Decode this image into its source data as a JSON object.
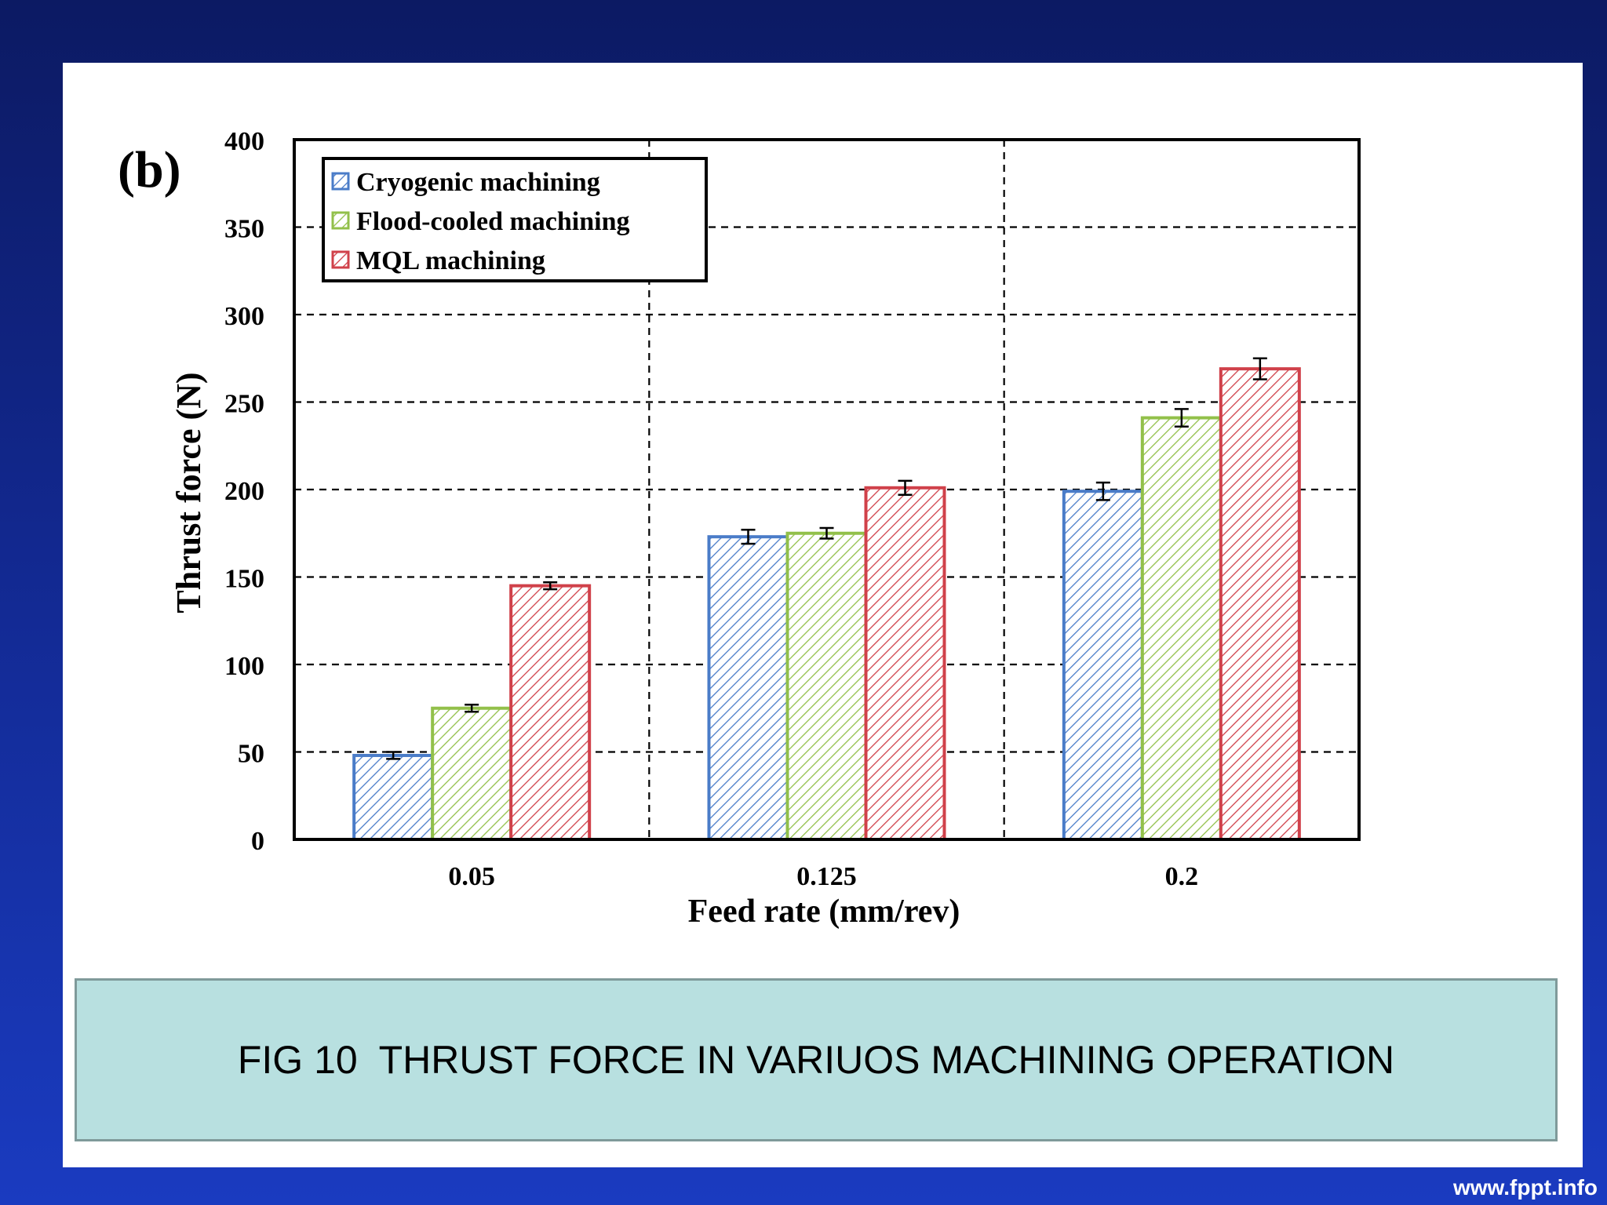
{
  "chart_data": {
    "type": "bar",
    "panel_label": "(b)",
    "categories": [
      "0.05",
      "0.125",
      "0.2"
    ],
    "series": [
      {
        "name": "Cryogenic machining",
        "values": [
          48,
          173,
          199
        ],
        "errors": [
          2,
          4,
          5
        ],
        "color": "#4a7cc8"
      },
      {
        "name": "Flood-cooled machining",
        "values": [
          75,
          175,
          241
        ],
        "errors": [
          2,
          3,
          5
        ],
        "color": "#92c04a"
      },
      {
        "name": "MQL machining",
        "values": [
          145,
          201,
          269
        ],
        "errors": [
          2,
          4,
          6
        ],
        "color": "#d0414a"
      }
    ],
    "xlabel": "Feed rate (mm/rev)",
    "ylabel": "Thrust force (N)",
    "ylim": [
      0,
      400
    ],
    "yticks": [
      "0",
      "50",
      "100",
      "150",
      "200",
      "250",
      "300",
      "350",
      "400"
    ],
    "grid": true,
    "legend_position": "top-left"
  },
  "caption": "FIG 10  THRUST FORCE IN VARIUOS MACHINING OPERATION",
  "watermark": "www.fppt.info"
}
